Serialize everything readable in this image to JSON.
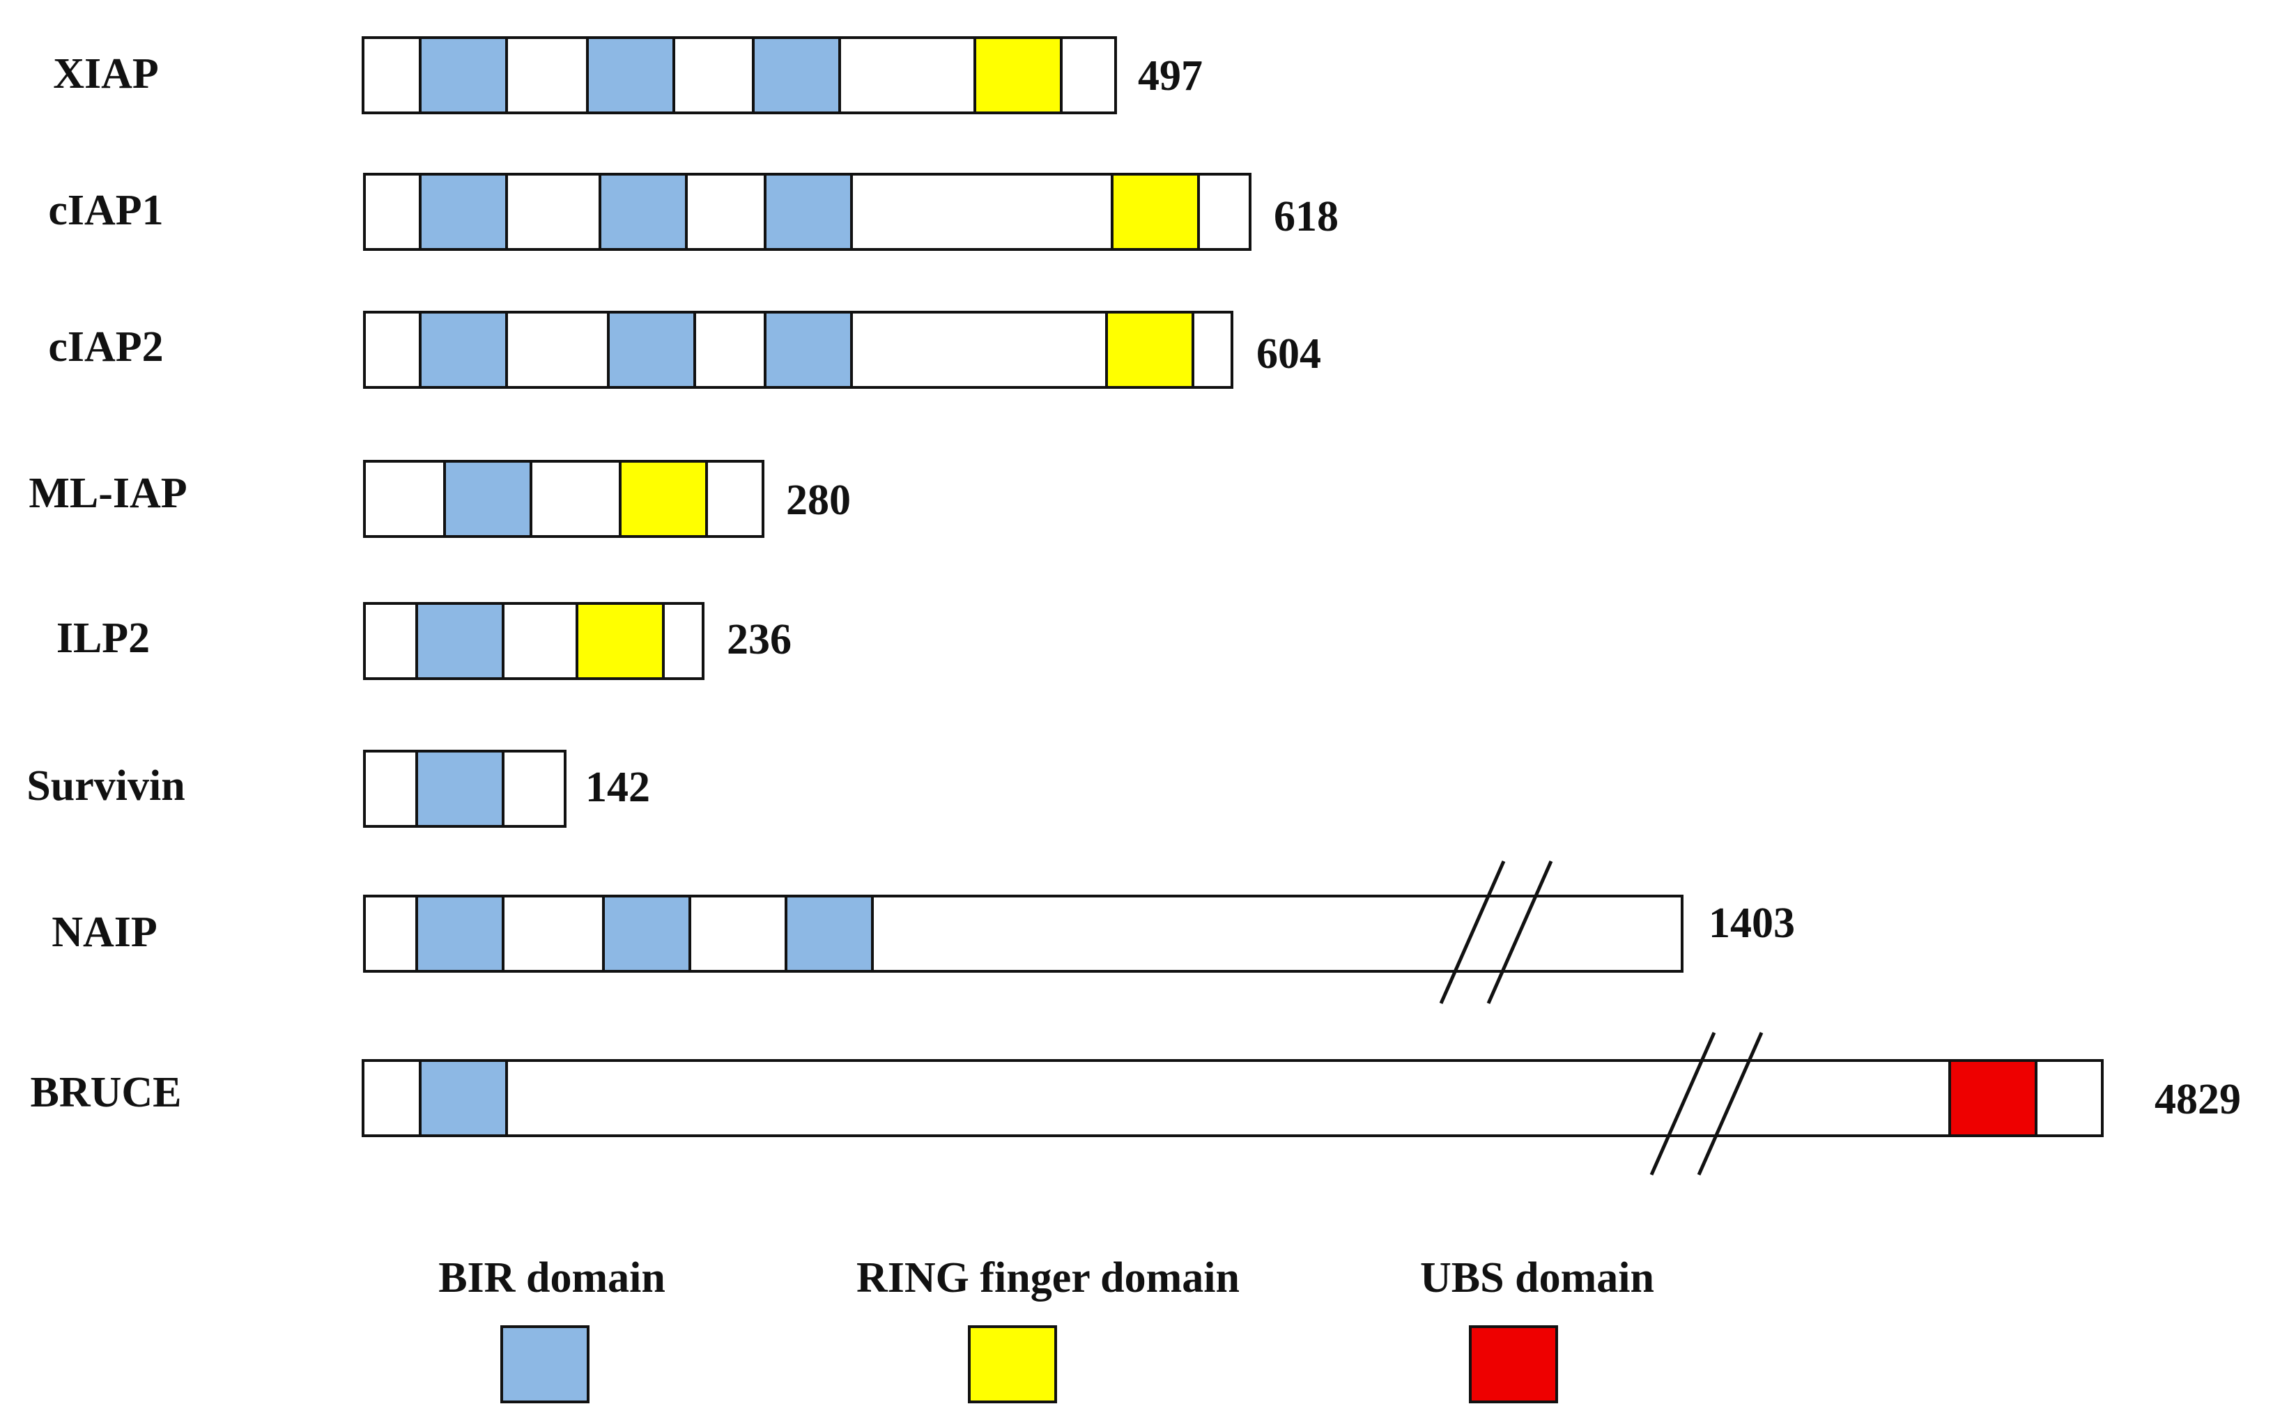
{
  "colors": {
    "bir": "#8db8e4",
    "ring": "#ffff00",
    "ubs": "#ee0000",
    "outline": "#111111",
    "bar_fill": "#ffffff"
  },
  "proteins": [
    {
      "name": "XIAP",
      "length": "497",
      "domains": [
        "BIR",
        "BIR",
        "BIR",
        "RING"
      ],
      "break": false
    },
    {
      "name": "cIAP1",
      "length": "618",
      "domains": [
        "BIR",
        "BIR",
        "BIR",
        "RING"
      ],
      "break": false
    },
    {
      "name": "cIAP2",
      "length": "604",
      "domains": [
        "BIR",
        "BIR",
        "BIR",
        "RING"
      ],
      "break": false
    },
    {
      "name": "ML-IAP",
      "length": "280",
      "domains": [
        "BIR",
        "RING"
      ],
      "break": false
    },
    {
      "name": "ILP2",
      "length": "236",
      "domains": [
        "BIR",
        "RING"
      ],
      "break": false
    },
    {
      "name": "Survivin",
      "length": "142",
      "domains": [
        "BIR"
      ],
      "break": false
    },
    {
      "name": "NAIP",
      "length": "1403",
      "domains": [
        "BIR",
        "BIR",
        "BIR"
      ],
      "break": true
    },
    {
      "name": "BRUCE",
      "length": "4829",
      "domains": [
        "BIR",
        "UBS"
      ],
      "break": true
    }
  ],
  "legend": [
    {
      "label": "BIR domain",
      "domain": "BIR"
    },
    {
      "label": "RING finger domain",
      "domain": "RING"
    },
    {
      "label": "UBS domain",
      "domain": "UBS"
    }
  ]
}
